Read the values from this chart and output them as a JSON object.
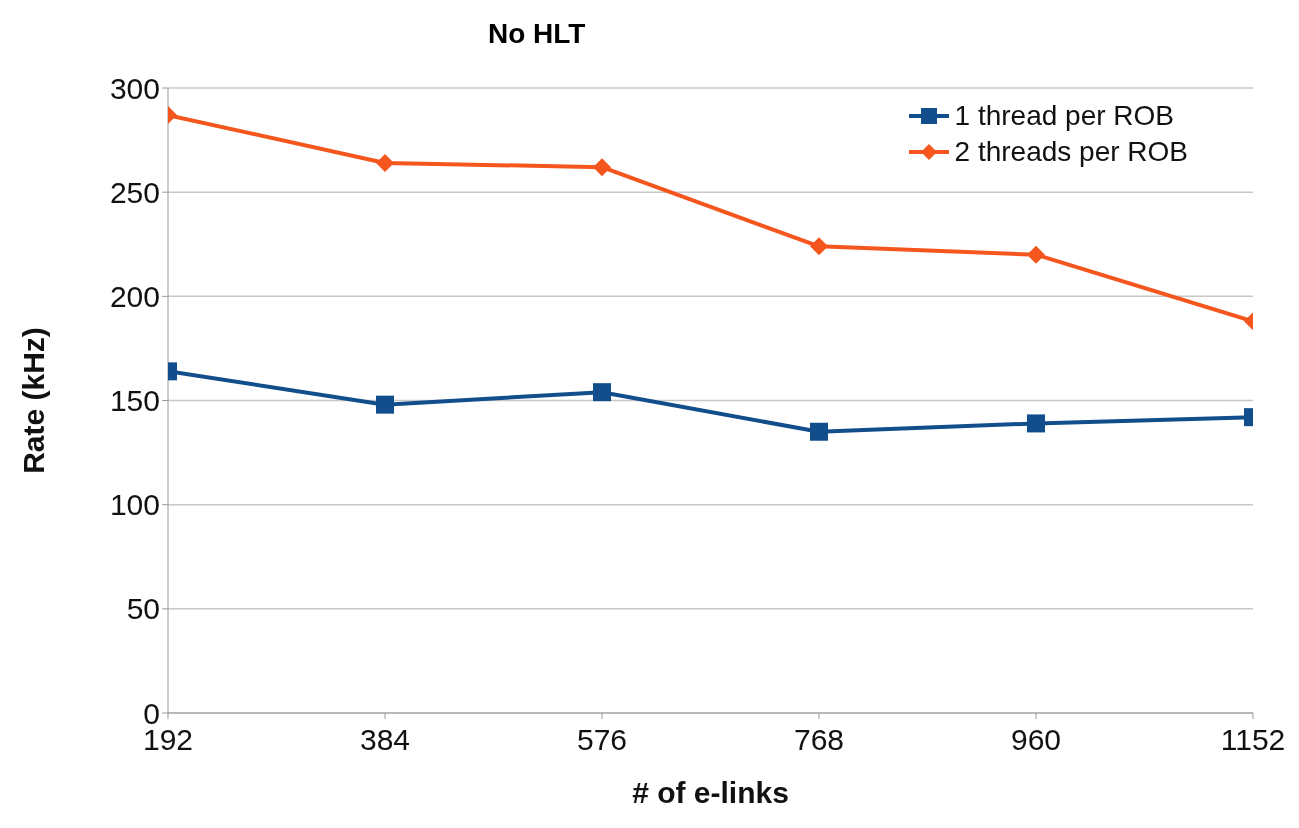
{
  "chart_data": {
    "type": "line",
    "title": "No HLT",
    "xlabel": "# of e-links",
    "ylabel": "Rate (kHz)",
    "x": [
      192,
      384,
      576,
      768,
      960,
      1152
    ],
    "series": [
      {
        "name": "1 thread per ROB",
        "color": "#124e8c",
        "marker": "square",
        "values": [
          164,
          148,
          154,
          135,
          139,
          142
        ]
      },
      {
        "name": "2 threads per ROB",
        "color": "#f4561e",
        "marker": "diamond",
        "values": [
          287,
          264,
          262,
          224,
          220,
          188
        ]
      }
    ],
    "xlim": [
      192,
      1152
    ],
    "xticks": [
      192,
      384,
      576,
      768,
      960,
      1152
    ],
    "ylim": [
      0,
      300
    ],
    "yticks": [
      0,
      50,
      100,
      150,
      200,
      250,
      300
    ],
    "grid": "y",
    "legend": "top right",
    "line_style": "solid"
  }
}
